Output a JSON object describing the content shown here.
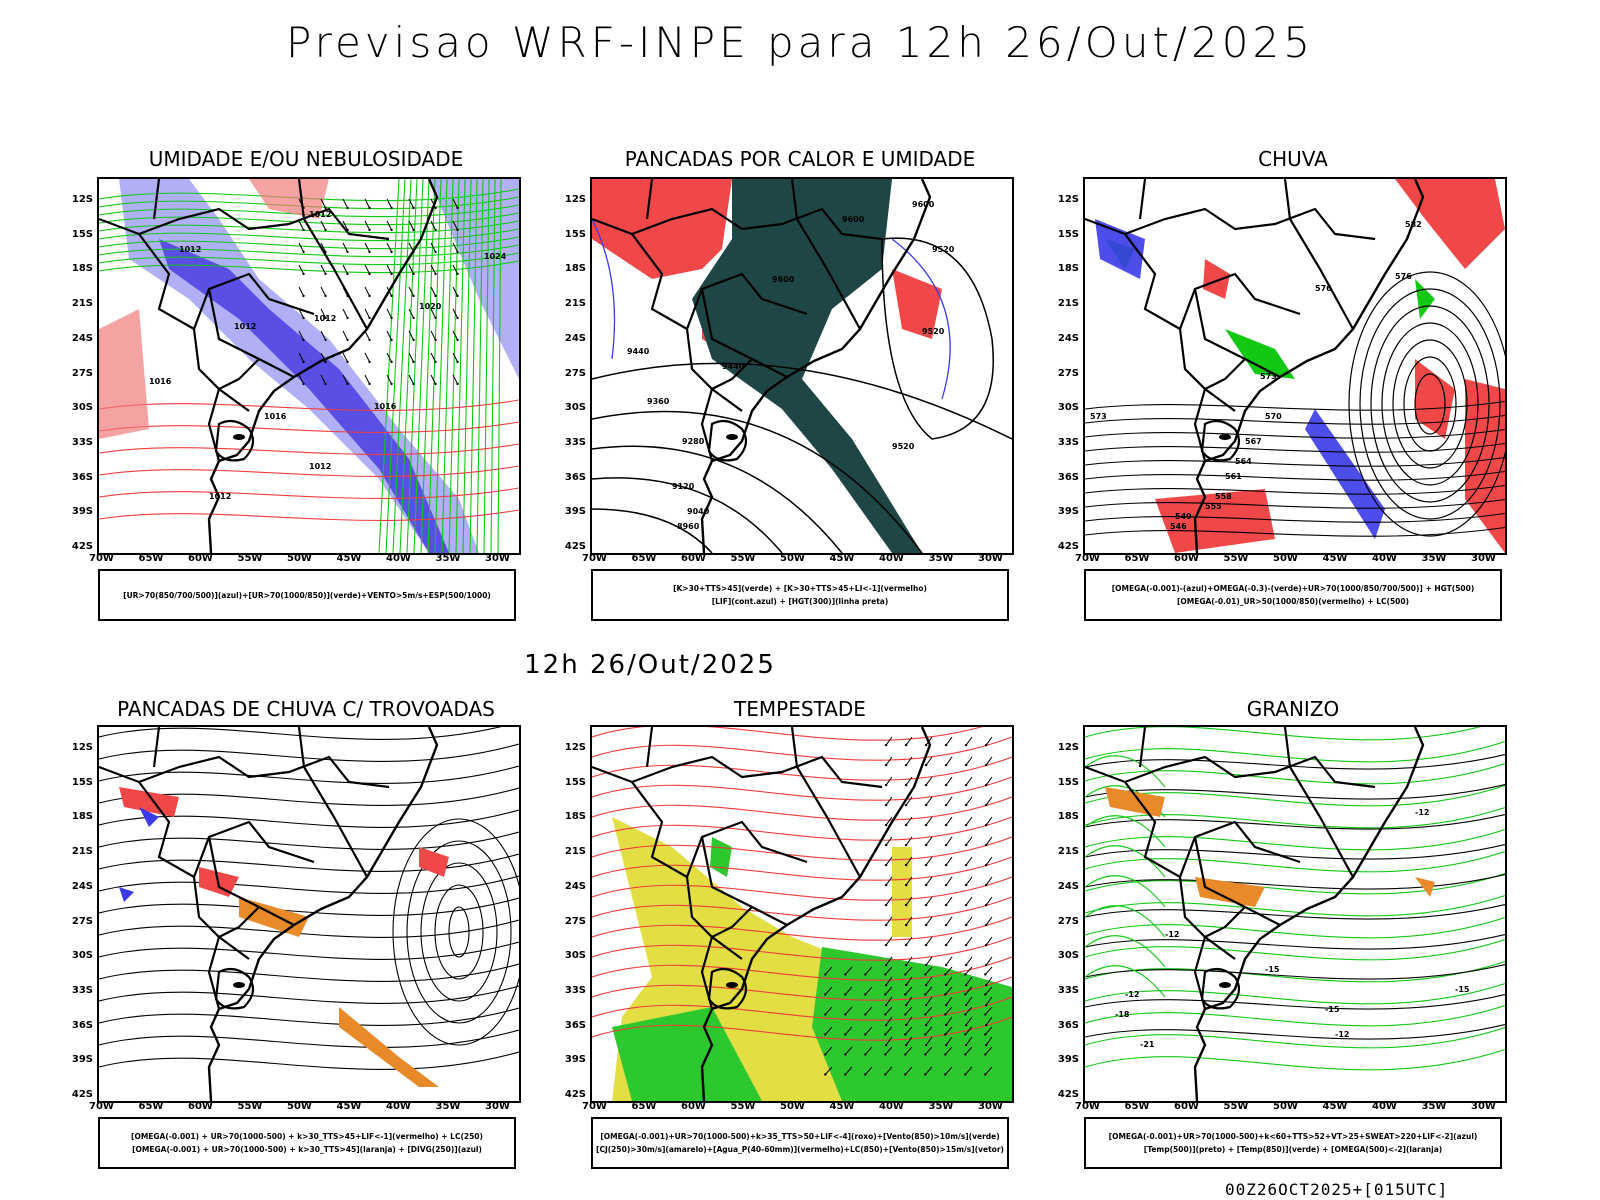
{
  "header": {
    "title": "Previsao WRF-INPE  para 12h 26/Out/2025",
    "subtitle": "12h 26/Out/2025"
  },
  "axes": {
    "lat_labels": [
      "12S",
      "15S",
      "18S",
      "21S",
      "24S",
      "27S",
      "30S",
      "33S",
      "36S",
      "39S",
      "42S"
    ],
    "lon_labels": [
      "70W",
      "65W",
      "60W",
      "55W",
      "50W",
      "45W",
      "40W",
      "35W",
      "30W"
    ]
  },
  "panels": [
    {
      "title": "UMIDADE E/OU NEBULOSIDADE",
      "legend": [
        "[UR>70(850/700/500)](azul)+[UR>70(1000/850)](verde)+VENTO>5m/s+ESP(500/1000)"
      ],
      "contour_labels": [
        "1012",
        "1012",
        "1012",
        "1012",
        "1016",
        "1016",
        "1020",
        "1024",
        "1012",
        "1012",
        "1016"
      ]
    },
    {
      "title": "PANCADAS POR CALOR E UMIDADE",
      "legend": [
        "[K>30+TTS>45](verde) + [K>30+TTS>45+LI<-1](vermelho)",
        "[LIF](cont.azul) + [HGT(300)](linha preta)"
      ],
      "contour_labels": [
        "9600",
        "9600",
        "9520",
        "9600",
        "9520",
        "9440",
        "9440",
        "9360",
        "9280",
        "9120",
        "9040",
        "8960",
        "9520"
      ]
    },
    {
      "title": "CHUVA",
      "legend": [
        "[OMEGA(-0.001)-(azul)+OMEGA(-0.3)-(verde)+UR>70(1000/850/700/500)] + HGT(500)",
        "[OMEGA(-0.01)_UR>50(1000/850)(vermelho) + LC(500)"
      ],
      "contour_labels": [
        "582",
        "576",
        "570",
        "573",
        "567",
        "564",
        "561",
        "558",
        "555",
        "549",
        "546",
        "573",
        "576"
      ]
    },
    {
      "title": "PANCADAS DE CHUVA C/ TROVOADAS",
      "legend": [
        "[OMEGA(-0.001) + UR>70(1000-500) + k>30_TTS>45+LIF<-1](vermelho) + LC(250)",
        "[OMEGA(-0.001) + UR>70(1000-500) + k>30_TTS>45](laranja) + [DIVG(250)](azul)"
      ],
      "contour_labels": []
    },
    {
      "title": "TEMPESTADE",
      "legend": [
        "[OMEGA(-0.001)+UR>70(1000-500)+k>35_TTS>50+LIF<-4](roxo)+[Vento(850)>10m/s](verde)",
        "[CJ(250)>30m/s](amarelo)+[Agua_P(40-60mm)](vermelho)+LC(850)+[Vento(850)>15m/s](vetor)"
      ],
      "contour_labels": []
    },
    {
      "title": "GRANIZO",
      "legend": [
        "[OMEGA(-0.001)+UR>70(1000-500)+k<60+TTS>52+VT>25+SWEAT>220+LIF<-2](azul)",
        "[Temp(500)](preto) + [Temp(850)](verde) + [OMEGA(500)<-2](laranja)"
      ],
      "contour_labels": [
        "-12",
        "-12",
        "-15",
        "-12",
        "-15",
        "-18",
        "-21",
        "-15",
        "-12"
      ]
    }
  ],
  "footer": "00Z26OCT2025+[015UTC]",
  "colors": {
    "blue_fill": "#a9a6f5",
    "dark_blue": "#4b3ee0",
    "green_line": "#12c812",
    "red_line": "#f03c3c",
    "dark_teal": "#1f4646",
    "red_fill": "#f04848",
    "yellow": "#e0dc3a",
    "orange": "#e88a2a"
  }
}
